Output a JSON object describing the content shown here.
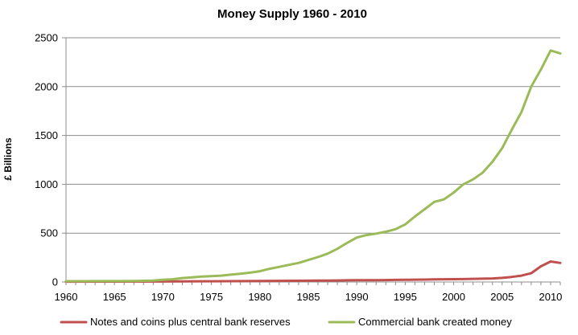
{
  "chart_data": {
    "type": "line",
    "title": "Money Supply 1960 - 2010",
    "xlabel": "",
    "ylabel": "£ Billions",
    "xlim": [
      1960,
      2011
    ],
    "ylim": [
      0,
      2500
    ],
    "xticks": [
      1960,
      1965,
      1970,
      1975,
      1980,
      1985,
      1990,
      1995,
      2000,
      2005,
      2010
    ],
    "yticks": [
      0,
      500,
      1000,
      1500,
      2000,
      2500
    ],
    "grid": "horizontal",
    "legend_position": "bottom",
    "series": [
      {
        "name": "Notes and coins plus central bank reserves",
        "color": "#c0504d",
        "points": [
          [
            1960,
            3
          ],
          [
            1965,
            4
          ],
          [
            1970,
            5
          ],
          [
            1975,
            7
          ],
          [
            1980,
            10
          ],
          [
            1985,
            13
          ],
          [
            1986,
            14
          ],
          [
            1987,
            15
          ],
          [
            1988,
            16
          ],
          [
            1989,
            17
          ],
          [
            1990,
            18
          ],
          [
            1991,
            18
          ],
          [
            1992,
            19
          ],
          [
            1993,
            20
          ],
          [
            1994,
            21
          ],
          [
            1995,
            22
          ],
          [
            1996,
            24
          ],
          [
            1997,
            25
          ],
          [
            1998,
            26
          ],
          [
            1999,
            28
          ],
          [
            2000,
            29
          ],
          [
            2001,
            30
          ],
          [
            2002,
            32
          ],
          [
            2003,
            34
          ],
          [
            2004,
            36
          ],
          [
            2005,
            42
          ],
          [
            2006,
            52
          ],
          [
            2007,
            65
          ],
          [
            2008,
            90
          ],
          [
            2009,
            160
          ],
          [
            2010,
            210
          ],
          [
            2011,
            195
          ]
        ]
      },
      {
        "name": "Commercial bank created money",
        "color": "#9bbb59",
        "points": [
          [
            1960,
            8
          ],
          [
            1961,
            8
          ],
          [
            1962,
            8
          ],
          [
            1963,
            9
          ],
          [
            1964,
            9
          ],
          [
            1965,
            9
          ],
          [
            1966,
            9
          ],
          [
            1967,
            10
          ],
          [
            1968,
            12
          ],
          [
            1969,
            15
          ],
          [
            1970,
            22
          ],
          [
            1971,
            28
          ],
          [
            1972,
            40
          ],
          [
            1973,
            48
          ],
          [
            1974,
            55
          ],
          [
            1975,
            60
          ],
          [
            1976,
            65
          ],
          [
            1977,
            75
          ],
          [
            1978,
            85
          ],
          [
            1979,
            95
          ],
          [
            1980,
            110
          ],
          [
            1981,
            135
          ],
          [
            1982,
            155
          ],
          [
            1983,
            175
          ],
          [
            1984,
            195
          ],
          [
            1985,
            225
          ],
          [
            1986,
            255
          ],
          [
            1987,
            290
          ],
          [
            1988,
            340
          ],
          [
            1989,
            400
          ],
          [
            1990,
            455
          ],
          [
            1991,
            480
          ],
          [
            1992,
            495
          ],
          [
            1993,
            515
          ],
          [
            1994,
            540
          ],
          [
            1995,
            590
          ],
          [
            1996,
            670
          ],
          [
            1997,
            745
          ],
          [
            1998,
            820
          ],
          [
            1999,
            845
          ],
          [
            2000,
            915
          ],
          [
            2001,
            1000
          ],
          [
            2002,
            1050
          ],
          [
            2003,
            1120
          ],
          [
            2004,
            1230
          ],
          [
            2005,
            1370
          ],
          [
            2006,
            1560
          ],
          [
            2007,
            1740
          ],
          [
            2008,
            2000
          ],
          [
            2009,
            2175
          ],
          [
            2010,
            2370
          ],
          [
            2011,
            2340
          ]
        ]
      }
    ]
  }
}
